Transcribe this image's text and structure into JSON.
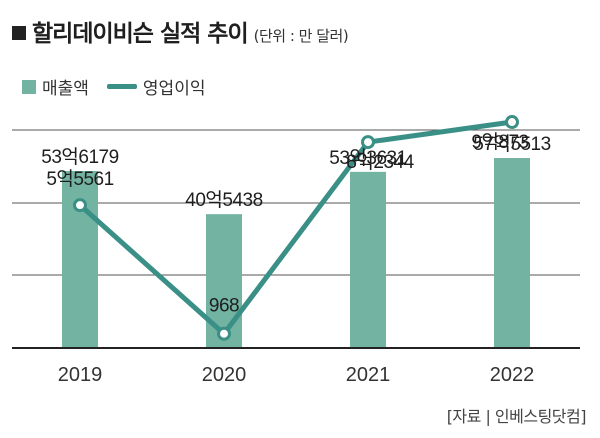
{
  "header": {
    "title": "할리데이비슨 실적 추이",
    "unit": "(단위 : 만 달러)"
  },
  "legend": {
    "bar_label": "매출액",
    "line_label": "영업이익"
  },
  "source": "[자료 | 인베스팅닷컴]",
  "colors": {
    "bar": "#72b4a1",
    "line": "#3a8f86",
    "grid": "#555555"
  },
  "chart_data": {
    "type": "bar",
    "categories": [
      "2019",
      "2020",
      "2021",
      "2022"
    ],
    "series": [
      {
        "name": "매출액",
        "type": "bar",
        "values": [
          536179,
          405438,
          533631,
          575513
        ],
        "labels": [
          "53억6179",
          "40억5438",
          "53억3631",
          "57억5513"
        ]
      },
      {
        "name": "영업이익",
        "type": "line",
        "values": [
          55561,
          968,
          82344,
          90873
        ],
        "labels": [
          "5억5561",
          "968",
          "8억2344",
          "9억873"
        ]
      }
    ],
    "grid": true,
    "legend_position": "top-left"
  }
}
